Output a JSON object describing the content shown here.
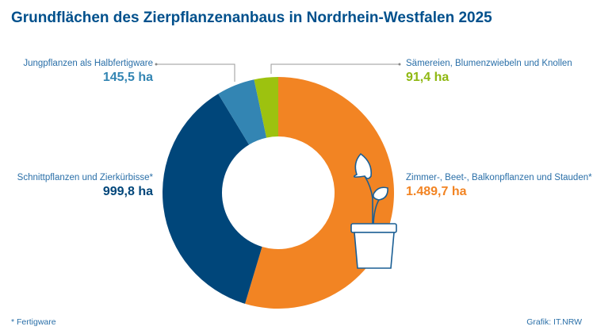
{
  "chart_data": {
    "type": "pie",
    "title": "Grundflächen des Zierpflanzenanbaus in Nordrhein-Westfalen 2025",
    "unit": "ha",
    "slices": [
      {
        "name": "Zimmer-, Beet-, Balkonpflanzen und Stauden*",
        "value": 1489.7,
        "label": "1.489,7 ha",
        "color": "#f28423"
      },
      {
        "name": "Schnittpflanzen und Zierkürbisse*",
        "value": 999.8,
        "label": "999,8 ha",
        "color": "#00467a"
      },
      {
        "name": "Jungpflanzen als Halbfertigware",
        "value": 145.5,
        "label": "145,5 ha",
        "color": "#3385b3"
      },
      {
        "name": "Sämereien, Blumenzwiebeln und Knollen",
        "value": 91.4,
        "label": "91,4 ha",
        "color": "#9dc20f"
      }
    ],
    "donut": true
  },
  "footnote": "*  Fertigware",
  "source": "Grafik: IT.NRW",
  "icon": "potted-plant-icon"
}
